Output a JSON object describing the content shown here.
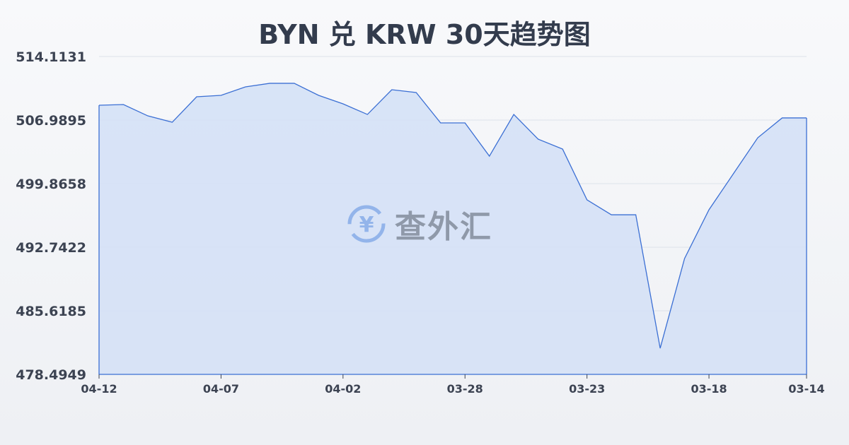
{
  "chart_data": {
    "type": "area",
    "title": "BYN 兑 KRW 30天趋势图",
    "xlabel": "",
    "ylabel": "",
    "x": [
      "04-12",
      "04-11",
      "04-10",
      "04-09",
      "04-08",
      "04-07",
      "04-06",
      "04-05",
      "04-04",
      "04-03",
      "04-02",
      "04-01",
      "03-31",
      "03-30",
      "03-29",
      "03-28",
      "03-27",
      "03-26",
      "03-25",
      "03-24",
      "03-23",
      "03-22",
      "03-21",
      "03-20",
      "03-19",
      "03-18",
      "03-17",
      "03-16",
      "03-15",
      "03-14"
    ],
    "x_tick_labels": [
      "04-12",
      "04-07",
      "04-02",
      "03-28",
      "03-23",
      "03-18",
      "03-14"
    ],
    "series": [
      {
        "values": [
          508.65,
          508.73,
          507.46,
          506.75,
          509.6,
          509.76,
          510.71,
          511.11,
          511.11,
          509.76,
          508.81,
          507.62,
          510.39,
          510.08,
          506.67,
          506.67,
          502.95,
          507.62,
          504.85,
          503.74,
          498.05,
          496.38,
          496.38,
          481.42,
          491.48,
          496.94,
          500.97,
          505.01,
          507.23,
          507.23
        ]
      }
    ],
    "y_tick_labels": [
      "514.1131",
      "506.9895",
      "499.8658",
      "492.7422",
      "485.6185",
      "478.4949"
    ],
    "ylim": [
      478.4949,
      514.1131
    ],
    "grid": true,
    "colors": {
      "line": "#3b6fd4",
      "fill": "#d5e1f6"
    },
    "watermark": "查外汇"
  }
}
